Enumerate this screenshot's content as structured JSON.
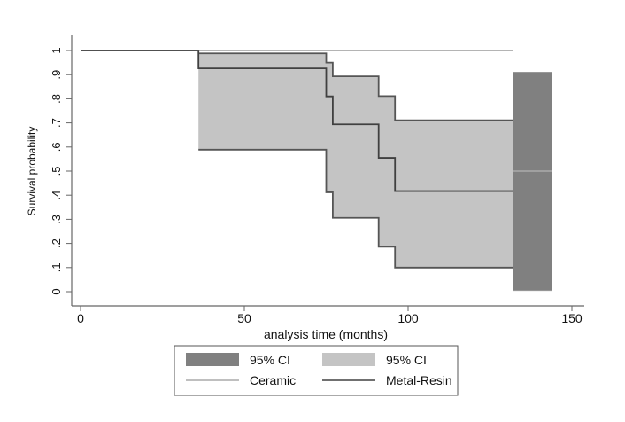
{
  "chart_data": {
    "type": "line",
    "subtype": "kaplan-meier step with confidence bands",
    "title": "",
    "xlabel": "analysis time (months)",
    "ylabel": "Survival probability",
    "xlim": [
      0,
      150
    ],
    "ylim": [
      0,
      1
    ],
    "xticks": [
      0,
      50,
      100,
      150
    ],
    "xtick_labels": [
      "0",
      "50",
      "100",
      "150"
    ],
    "yticks": [
      0,
      0.1,
      0.2,
      0.3,
      0.4,
      0.5,
      0.6,
      0.7,
      0.8,
      0.9,
      1
    ],
    "ytick_labels": [
      "0",
      ".1",
      ".2",
      ".3",
      ".4",
      ".5",
      ".6",
      ".7",
      ".8",
      ".9",
      "1"
    ],
    "grid": false,
    "legend_position": "bottom",
    "series": [
      {
        "name": "Ceramic",
        "color": "#aaaaaa",
        "band_color": "#808080",
        "band_label": "95% CI",
        "steps": [
          {
            "t": 0,
            "s": 1.0
          },
          {
            "t": 132,
            "s": 1.0
          }
        ],
        "ci_steps": [
          {
            "t": 132,
            "lo": 0.005,
            "hi": 0.91,
            "s": 0.5
          },
          {
            "t": 144,
            "lo": 0.005,
            "hi": 0.91,
            "s": 0.5
          }
        ]
      },
      {
        "name": "Metal-Resin",
        "color": "#404040",
        "band_color": "#c4c4c4",
        "band_label": "95% CI",
        "steps": [
          {
            "t": 0,
            "s": 1.0
          },
          {
            "t": 36,
            "s": 0.926
          },
          {
            "t": 75,
            "s": 0.81
          },
          {
            "t": 77,
            "s": 0.694
          },
          {
            "t": 91,
            "s": 0.555
          },
          {
            "t": 96,
            "s": 0.417
          },
          {
            "t": 132,
            "s": 0.417
          }
        ],
        "ci_steps": [
          {
            "t": 36,
            "lo": 0.589,
            "hi": 0.988
          },
          {
            "t": 75,
            "lo": 0.412,
            "hi": 0.95
          },
          {
            "t": 77,
            "lo": 0.306,
            "hi": 0.893
          },
          {
            "t": 91,
            "lo": 0.186,
            "hi": 0.811
          },
          {
            "t": 96,
            "lo": 0.1,
            "hi": 0.711
          },
          {
            "t": 132,
            "lo": 0.1,
            "hi": 0.711
          }
        ]
      }
    ],
    "legend": [
      {
        "label": "95% CI",
        "kind": "band",
        "color": "#808080"
      },
      {
        "label": "95% CI",
        "kind": "band",
        "color": "#c4c4c4"
      },
      {
        "label": "Ceramic",
        "kind": "line",
        "color": "#aaaaaa"
      },
      {
        "label": "Metal-Resin",
        "kind": "line",
        "color": "#404040"
      }
    ]
  }
}
